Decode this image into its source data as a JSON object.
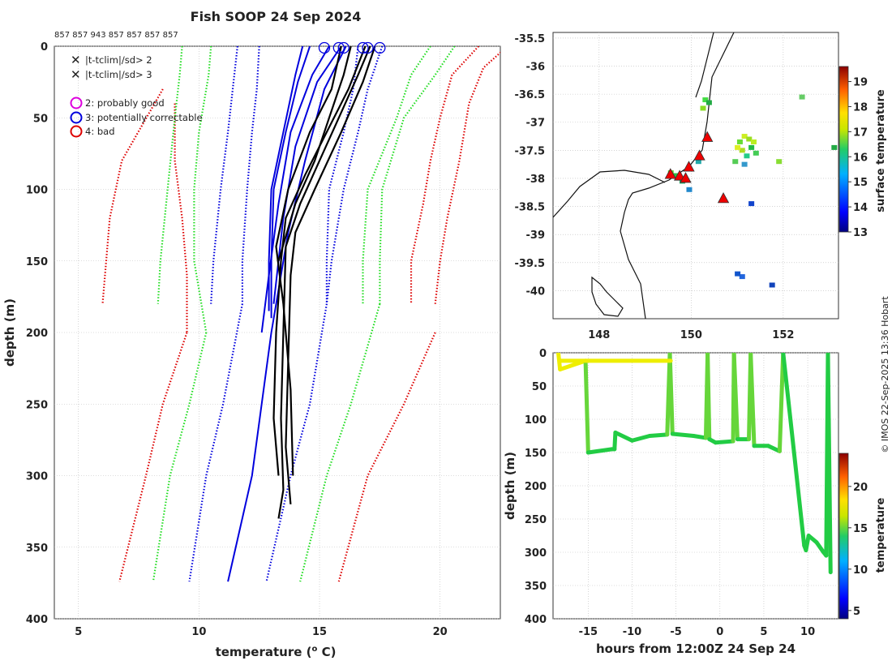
{
  "chart_data": [
    {
      "id": "profiles",
      "type": "line",
      "title": "Fish SOOP 24 Sep 2024",
      "xlabel": "temperature (",
      "xlabel_sup": "o",
      "xlabel_end": " C)",
      "ylabel": "depth (m)",
      "xlim": [
        4,
        22.5
      ],
      "ylim": [
        0,
        400
      ],
      "y_reversed": true,
      "xticks": [
        5,
        10,
        15,
        20
      ],
      "yticks": [
        0,
        50,
        100,
        150,
        200,
        250,
        300,
        350,
        400
      ],
      "grid": true,
      "drop_ids": [
        "857",
        "857",
        "943",
        "857",
        "857",
        "857",
        "857"
      ],
      "drop_id_text": "857 857 943 857 857 857 857",
      "legend": [
        {
          "symbol": "x",
          "color": "#22dd22",
          "label": "|t-tclim|/sd> 2"
        },
        {
          "symbol": "x",
          "color": "#dd0000",
          "label": "|t-tclim|/sd> 3"
        },
        {
          "symbol": "o",
          "color": "#dd00dd",
          "label": "2: probably good"
        },
        {
          "symbol": "o",
          "color": "#0000dd",
          "label": "3: potentially correctable"
        },
        {
          "symbol": "o",
          "color": "#dd0000",
          "label": "4: bad"
        }
      ],
      "climatology_dotted": [
        {
          "color": "#dd0000",
          "depth": [
            0,
            15,
            40,
            80,
            120,
            150,
            180
          ],
          "temp": [
            22.8,
            21.8,
            21.2,
            20.8,
            20.3,
            20.0,
            19.8
          ]
        },
        {
          "color": "#dd0000",
          "depth": [
            0,
            20,
            50,
            80,
            110,
            150,
            180
          ],
          "temp": [
            21.6,
            20.5,
            20.0,
            19.6,
            19.3,
            18.8,
            18.8
          ]
        },
        {
          "color": "#dd0000",
          "depth": [
            30,
            80,
            120,
            180
          ],
          "temp": [
            8.5,
            6.8,
            6.3,
            6.0
          ]
        },
        {
          "color": "#dd0000",
          "depth": [
            40,
            80,
            120,
            160,
            200
          ],
          "temp": [
            9.0,
            9.0,
            9.3,
            9.5,
            9.5
          ]
        },
        {
          "color": "#dd0000",
          "depth": [
            200,
            250,
            300,
            374
          ],
          "temp": [
            9.5,
            8.5,
            7.8,
            6.7
          ]
        },
        {
          "color": "#dd0000",
          "depth": [
            200,
            250,
            300,
            374
          ],
          "temp": [
            19.8,
            18.5,
            17.0,
            15.8
          ]
        },
        {
          "color": "#22dd22",
          "depth": [
            0,
            20,
            50,
            100,
            150,
            180
          ],
          "temp": [
            9.3,
            9.2,
            9.0,
            8.7,
            8.4,
            8.3
          ]
        },
        {
          "color": "#22dd22",
          "depth": [
            0,
            20,
            60,
            100,
            150,
            200
          ],
          "temp": [
            10.5,
            10.4,
            10.0,
            9.8,
            9.8,
            10.3
          ]
        },
        {
          "color": "#22dd22",
          "depth": [
            200,
            250,
            300,
            374
          ],
          "temp": [
            10.3,
            9.6,
            8.8,
            8.1
          ]
        },
        {
          "color": "#22dd22",
          "depth": [
            0,
            20,
            50,
            100,
            150,
            180
          ],
          "temp": [
            20.6,
            19.8,
            18.5,
            17.6,
            17.5,
            17.5
          ]
        },
        {
          "color": "#22dd22",
          "depth": [
            0,
            20,
            50,
            100,
            150,
            180
          ],
          "temp": [
            19.6,
            18.8,
            18.2,
            17.0,
            16.8,
            16.8
          ]
        },
        {
          "color": "#22dd22",
          "depth": [
            180,
            250,
            300,
            374
          ],
          "temp": [
            17.5,
            16.3,
            15.3,
            14.2
          ]
        },
        {
          "color": "#0000dd",
          "depth": [
            0,
            30,
            60,
            100,
            150,
            180
          ],
          "temp": [
            11.6,
            11.4,
            11.2,
            10.9,
            10.6,
            10.5
          ]
        },
        {
          "color": "#0000dd",
          "depth": [
            0,
            30,
            60,
            100,
            150,
            180
          ],
          "temp": [
            12.5,
            12.4,
            12.2,
            12.0,
            11.8,
            11.8
          ]
        },
        {
          "color": "#0000dd",
          "depth": [
            180,
            250,
            300,
            374
          ],
          "temp": [
            11.8,
            11.0,
            10.3,
            9.6
          ]
        },
        {
          "color": "#0000dd",
          "depth": [
            0,
            30,
            60,
            100,
            150,
            180
          ],
          "temp": [
            17.6,
            17.0,
            16.6,
            16.0,
            15.5,
            15.3
          ]
        },
        {
          "color": "#0000dd",
          "depth": [
            0,
            30,
            60,
            100,
            150,
            180
          ],
          "temp": [
            16.6,
            16.4,
            16.0,
            15.4,
            15.3,
            15.3
          ]
        },
        {
          "color": "#0000dd",
          "depth": [
            180,
            250,
            300,
            374
          ],
          "temp": [
            15.3,
            14.6,
            13.8,
            12.8
          ]
        }
      ],
      "profiles_blue": [
        {
          "depth": [
            0,
            20,
            60,
            100,
            150,
            185
          ],
          "temp": [
            14.3,
            14.0,
            13.5,
            13.0,
            12.9,
            12.9
          ]
        },
        {
          "depth": [
            0,
            25,
            60,
            100,
            150,
            190
          ],
          "temp": [
            14.6,
            14.1,
            13.6,
            13.1,
            13.0,
            13.0
          ]
        },
        {
          "depth": [
            0,
            20,
            60,
            110,
            160,
            200
          ],
          "temp": [
            15.4,
            14.7,
            13.8,
            13.3,
            12.9,
            12.6
          ]
        },
        {
          "depth": [
            0,
            25,
            70,
            120,
            180
          ],
          "temp": [
            15.9,
            14.9,
            14.0,
            13.5,
            13.1
          ]
        },
        {
          "depth": [
            0,
            30,
            80,
            130,
            200,
            300,
            374
          ],
          "temp": [
            16.1,
            15.2,
            14.4,
            13.7,
            13.0,
            12.2,
            11.2
          ]
        }
      ],
      "profiles_black": [
        {
          "depth": [
            0,
            20,
            50,
            80,
            110,
            150
          ],
          "temp": [
            16.3,
            16.0,
            15.4,
            14.8,
            14.0,
            13.3
          ]
        },
        {
          "depth": [
            0,
            30,
            60,
            90,
            120,
            150,
            200,
            260,
            300
          ],
          "temp": [
            16.9,
            16.2,
            15.3,
            14.4,
            13.6,
            13.4,
            13.2,
            13.1,
            13.3
          ]
        },
        {
          "depth": [
            0,
            20,
            50,
            80,
            110,
            140,
            200,
            260,
            310,
            330
          ],
          "temp": [
            17.1,
            16.6,
            15.8,
            15.0,
            14.2,
            13.6,
            13.5,
            13.4,
            13.5,
            13.3
          ]
        },
        {
          "depth": [
            0,
            25,
            60,
            100,
            130,
            160,
            220,
            280,
            320
          ],
          "temp": [
            17.3,
            16.8,
            15.9,
            14.8,
            14.0,
            13.8,
            13.7,
            13.6,
            13.8
          ]
        },
        {
          "depth": [
            0,
            30,
            60,
            100,
            140,
            180,
            240,
            300
          ],
          "temp": [
            15.9,
            15.5,
            14.6,
            13.7,
            13.2,
            13.5,
            13.8,
            13.9
          ]
        }
      ],
      "top_circles_temp": [
        15.2,
        15.8,
        16.0,
        16.8,
        17.0,
        17.5
      ]
    },
    {
      "id": "map",
      "type": "heatmap",
      "xlim": [
        147,
        153.2
      ],
      "ylim": [
        -40.5,
        -35.4
      ],
      "xticks": [
        148,
        150,
        152
      ],
      "yticks": [
        -35.5,
        -36,
        -36.5,
        -37,
        -37.5,
        -38,
        -38.5,
        -39,
        -39.5,
        -40
      ],
      "colorbar_label": "surface temperature",
      "colorbar_range": [
        13,
        19.6
      ],
      "colorbar_ticks": [
        13,
        14,
        15,
        16,
        17,
        18,
        19
      ],
      "drop_markers": [
        {
          "lon": 149.55,
          "lat": -37.93
        },
        {
          "lon": 149.75,
          "lat": -37.96
        },
        {
          "lon": 149.88,
          "lat": -38.0
        },
        {
          "lon": 149.95,
          "lat": -37.8
        },
        {
          "lon": 150.18,
          "lat": -37.6
        },
        {
          "lon": 150.35,
          "lat": -37.27
        },
        {
          "lon": 150.7,
          "lat": -38.36
        }
      ]
    },
    {
      "id": "section",
      "type": "line",
      "xlabel": "hours from 12:00Z 24 Sep 24",
      "ylabel": "depth (m)",
      "xlim": [
        -19,
        13.5
      ],
      "ylim": [
        0,
        400
      ],
      "y_reversed": true,
      "xticks": [
        -15,
        -10,
        -5,
        0,
        5,
        10
      ],
      "yticks": [
        0,
        50,
        100,
        150,
        200,
        250,
        300,
        350,
        400
      ],
      "colorbar_label": "temperature",
      "colorbar_range": [
        4,
        24
      ],
      "colorbar_ticks": [
        5,
        10,
        15,
        20
      ],
      "tow_path": {
        "hours": [
          -18.4,
          -18.2,
          -15.3,
          -15.0,
          -12.3,
          -12.0,
          -11.9,
          -10.0,
          -8.0,
          -6.0,
          -5.7,
          -5.4,
          -3.0,
          -1.6,
          -1.4,
          -1.2,
          -0.5,
          1.5,
          1.6,
          2.0,
          3.3,
          3.5,
          3.9,
          5.5,
          6.8,
          7.2,
          9.6,
          9.8,
          10.1,
          11.0,
          11.8,
          12.1,
          12.3,
          12.6
        ],
        "depth": [
          0,
          25,
          12,
          150,
          145,
          145,
          120,
          132,
          125,
          123,
          0,
          122,
          125,
          128,
          0,
          130,
          135,
          133,
          0,
          130,
          130,
          0,
          140,
          140,
          148,
          0,
          290,
          297,
          275,
          285,
          300,
          305,
          0,
          330
        ]
      }
    }
  ],
  "watermark": "© IMOS 22-Sep-2025 13:36 Hobart",
  "colors": {
    "red": "#dd0000",
    "green": "#22dd22",
    "blue": "#0000dd",
    "black": "#000000",
    "grid": "#bbbbbb"
  }
}
